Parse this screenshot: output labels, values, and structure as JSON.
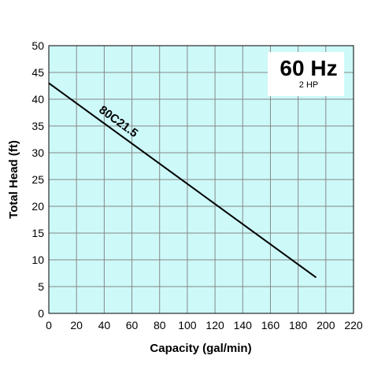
{
  "chart_data": {
    "type": "line",
    "title": "60 Hz",
    "subtitle": "2 HP",
    "xlabel": "Capacity (gal/min)",
    "ylabel": "Total Head (ft)",
    "xlim": [
      0,
      220
    ],
    "ylim": [
      0,
      50
    ],
    "xticks": [
      0,
      20,
      40,
      60,
      80,
      100,
      120,
      140,
      160,
      180,
      200,
      220
    ],
    "yticks": [
      0,
      5,
      10,
      15,
      20,
      25,
      30,
      35,
      40,
      45,
      50
    ],
    "grid": true,
    "background_color": "#cdf9f9",
    "series": [
      {
        "name": "80C21.5",
        "color": "#000000",
        "x": [
          0,
          193
        ],
        "y": [
          43,
          6.7
        ]
      }
    ]
  }
}
